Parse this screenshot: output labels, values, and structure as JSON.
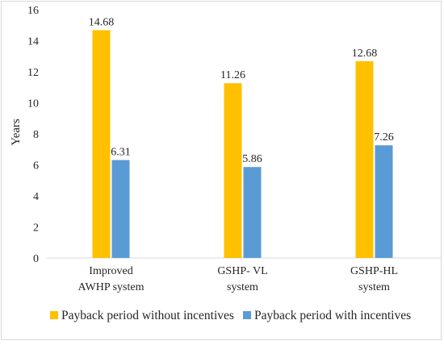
{
  "chart_data": {
    "type": "bar",
    "categories": [
      [
        "Improved",
        "AWHP system"
      ],
      [
        "GSHP- VL",
        "system"
      ],
      [
        "GSHP-HL",
        "system"
      ]
    ],
    "series": [
      {
        "name": "Payback period without incentives",
        "values": [
          14.68,
          11.26,
          12.68
        ],
        "labels": [
          "14.68",
          "11.26",
          "12.68"
        ],
        "color": "#FFC000"
      },
      {
        "name": "Payback period with incentives",
        "values": [
          6.31,
          5.86,
          7.26
        ],
        "labels": [
          "6.31",
          "5.86",
          "7.26"
        ],
        "color": "#5B9BD5"
      }
    ],
    "ylabel": "Years",
    "ylim": [
      0,
      16
    ],
    "yticks": [
      "0",
      "2",
      "4",
      "6",
      "8",
      "10",
      "12",
      "14",
      "16"
    ],
    "grid": false,
    "legend_position": "bottom"
  }
}
